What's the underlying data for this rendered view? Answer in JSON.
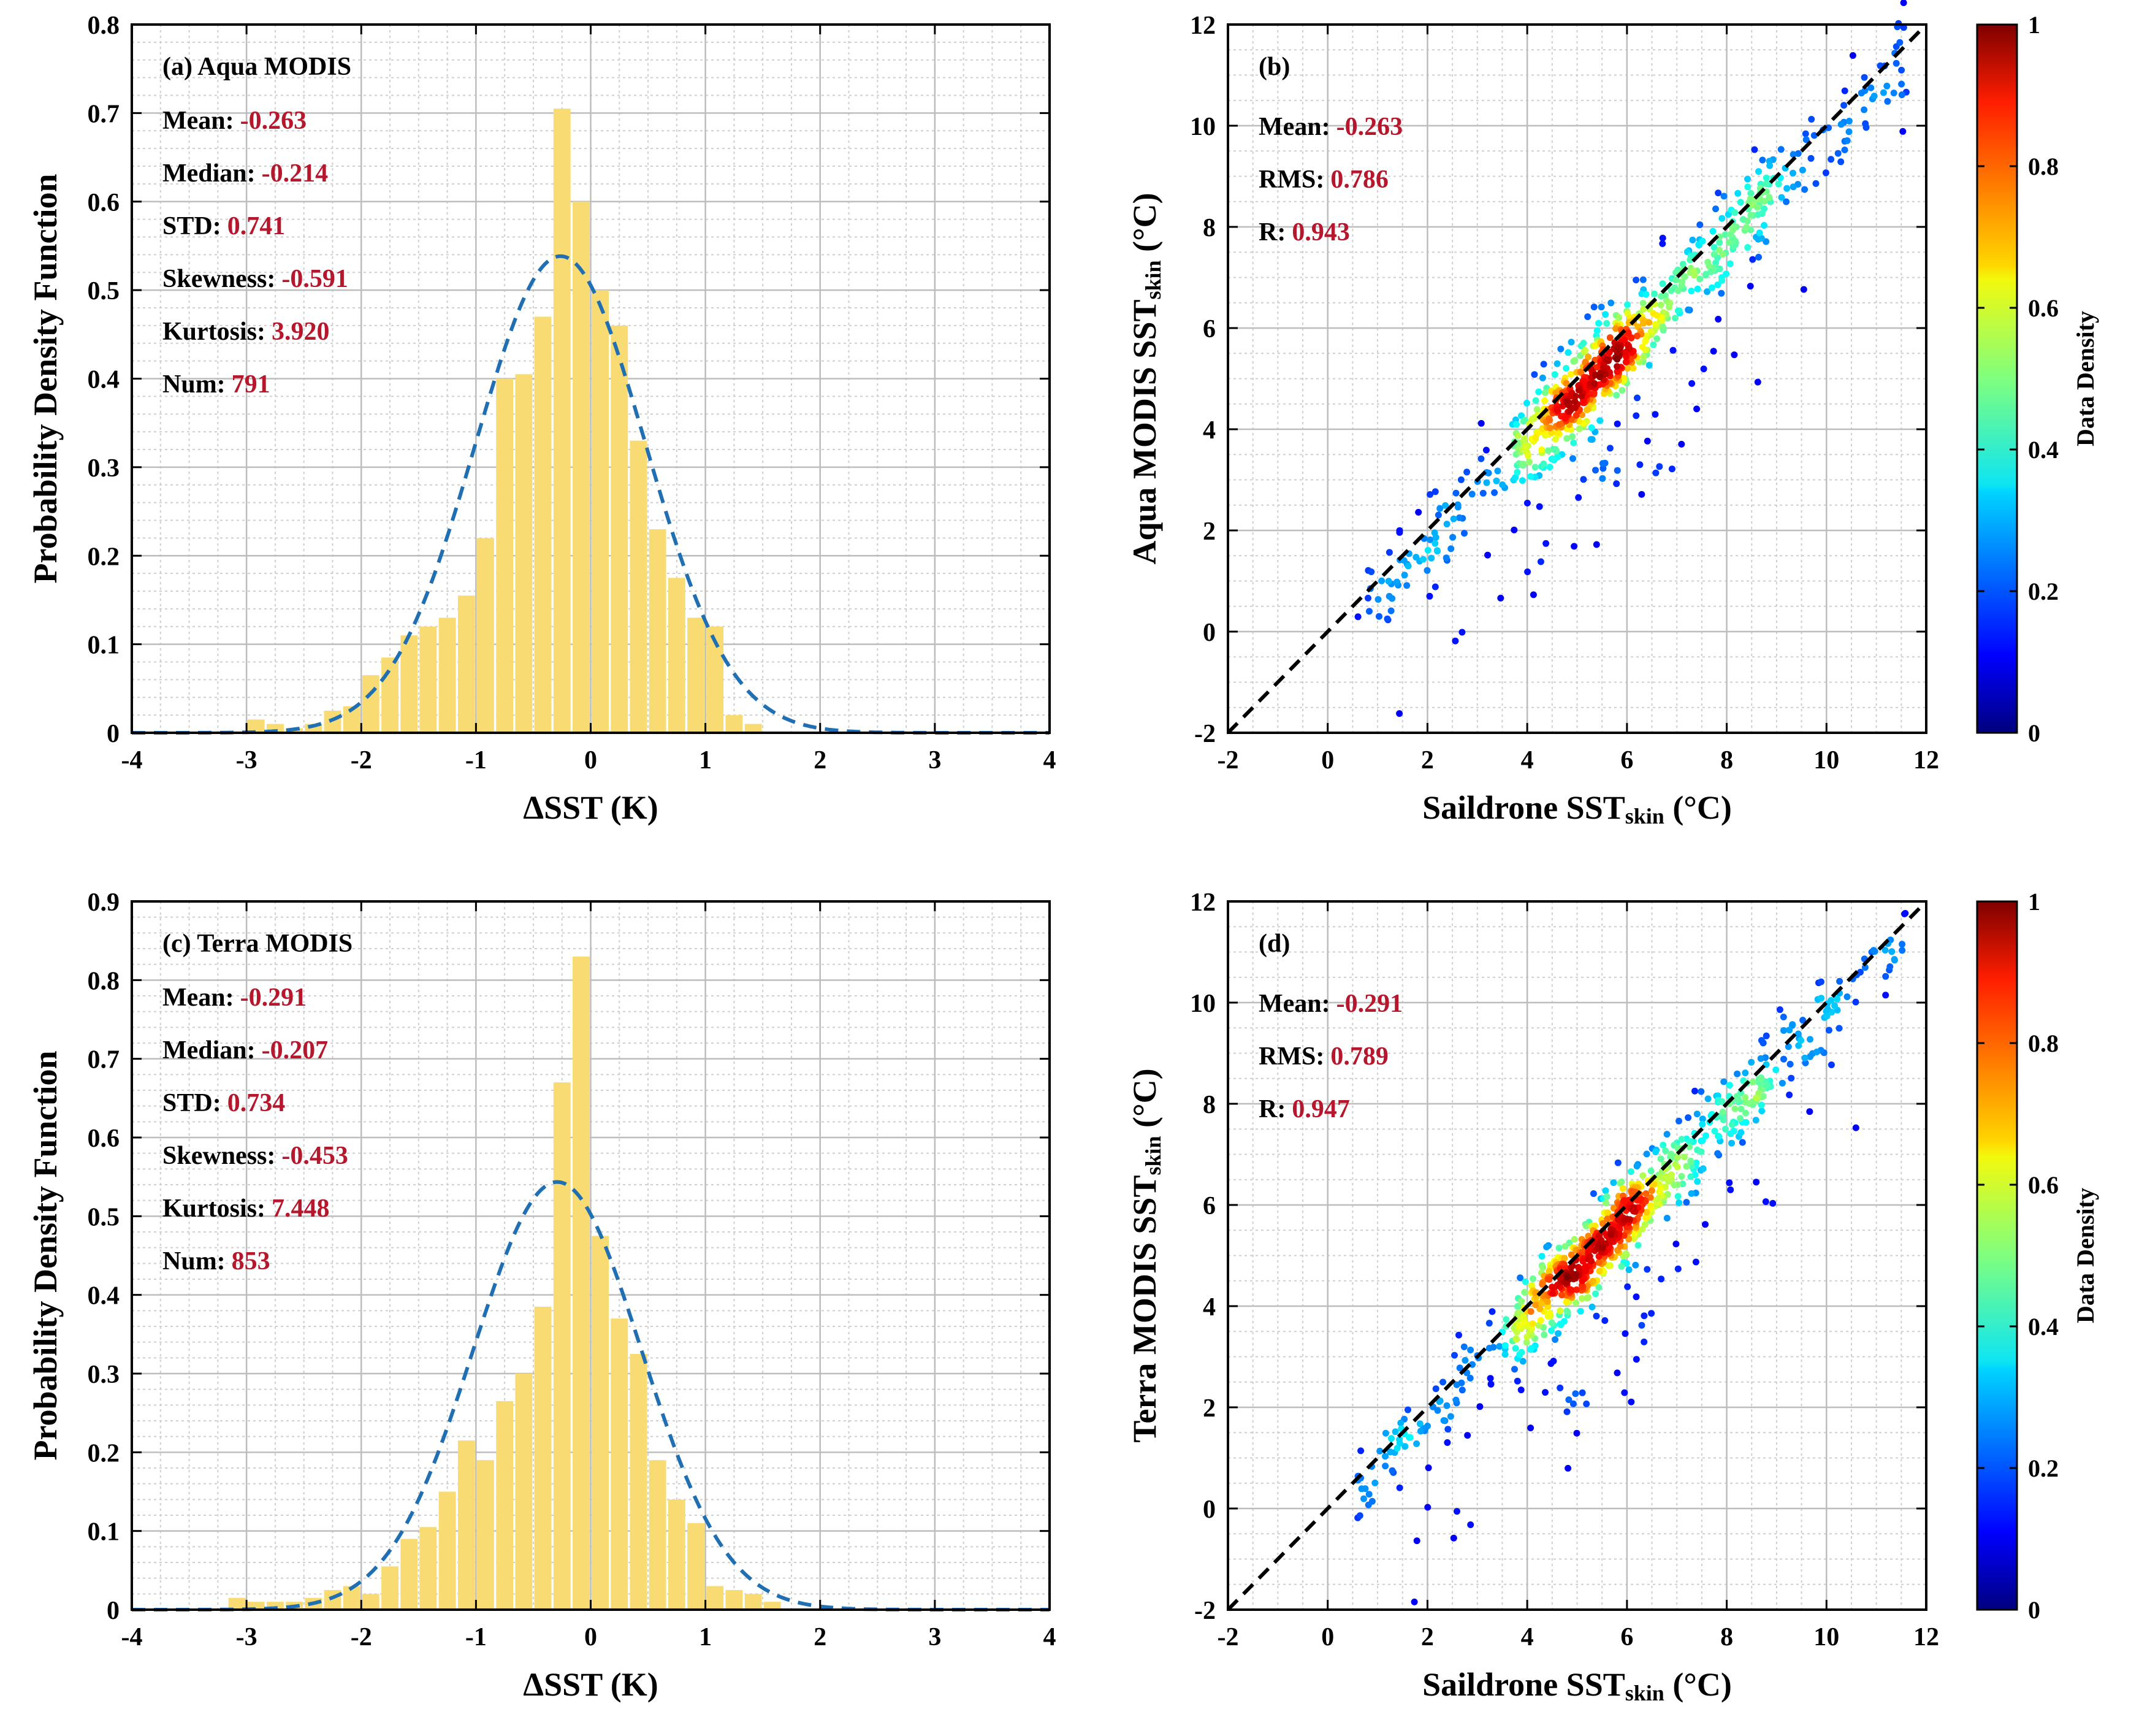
{
  "chart_data": [
    {
      "id": "a",
      "type": "bar",
      "title": "(a) Aqua MODIS",
      "xlabel": "ΔSST (K)",
      "ylabel": "Probability Density Function",
      "xlim": [
        -4,
        4
      ],
      "ylim": [
        0,
        0.8
      ],
      "xticks": [
        "-4",
        "-3",
        "-2",
        "-1",
        "0",
        "1",
        "2",
        "3",
        "4"
      ],
      "yticks": [
        "0",
        "0.1",
        "0.2",
        "0.3",
        "0.4",
        "0.5",
        "0.6",
        "0.7",
        "0.8"
      ],
      "grid": true,
      "bar_width": 0.167,
      "bar_color": "#f8dc73",
      "curve_color": "#1f6fb2",
      "bins": [
        {
          "x": -2.917,
          "y": 0.015
        },
        {
          "x": -2.75,
          "y": 0.01
        },
        {
          "x": -2.583,
          "y": 0.005
        },
        {
          "x": -2.417,
          "y": 0.01
        },
        {
          "x": -2.25,
          "y": 0.025
        },
        {
          "x": -2.083,
          "y": 0.03
        },
        {
          "x": -1.917,
          "y": 0.065
        },
        {
          "x": -1.75,
          "y": 0.085
        },
        {
          "x": -1.583,
          "y": 0.11
        },
        {
          "x": -1.417,
          "y": 0.12
        },
        {
          "x": -1.25,
          "y": 0.13
        },
        {
          "x": -1.083,
          "y": 0.155
        },
        {
          "x": -0.917,
          "y": 0.22
        },
        {
          "x": -0.75,
          "y": 0.4
        },
        {
          "x": -0.583,
          "y": 0.405
        },
        {
          "x": -0.417,
          "y": 0.47
        },
        {
          "x": -0.25,
          "y": 0.705
        },
        {
          "x": -0.083,
          "y": 0.6
        },
        {
          "x": 0.083,
          "y": 0.5
        },
        {
          "x": 0.25,
          "y": 0.46
        },
        {
          "x": 0.417,
          "y": 0.33
        },
        {
          "x": 0.583,
          "y": 0.23
        },
        {
          "x": 0.75,
          "y": 0.175
        },
        {
          "x": 0.917,
          "y": 0.13
        },
        {
          "x": 1.083,
          "y": 0.12
        },
        {
          "x": 1.25,
          "y": 0.02
        },
        {
          "x": 1.417,
          "y": 0.01
        }
      ],
      "curve": {
        "mean": -0.263,
        "std": 0.741
      },
      "stats": [
        {
          "label": "Mean:",
          "value": "-0.263"
        },
        {
          "label": "Median:",
          "value": "-0.214"
        },
        {
          "label": "STD:",
          "value": "0.741"
        },
        {
          "label": "Skewness:",
          "value": "-0.591"
        },
        {
          "label": "Kurtosis:",
          "value": "3.920"
        },
        {
          "label": "Num:",
          "value": "791"
        }
      ]
    },
    {
      "id": "b",
      "type": "scatter",
      "title": "(b)",
      "xlabel_main": "Saildrone SST",
      "xlabel_sub": "skin",
      "xlabel_unit": " (°C)",
      "ylabel_main": "Aqua MODIS SST",
      "ylabel_sub": "skin",
      "ylabel_unit": " (°C)",
      "xlim": [
        -2,
        12
      ],
      "ylim": [
        -2,
        12
      ],
      "xticks": [
        "-2",
        "0",
        "2",
        "4",
        "6",
        "8",
        "10",
        "12"
      ],
      "yticks": [
        "-2",
        "0",
        "2",
        "4",
        "6",
        "8",
        "10",
        "12"
      ],
      "grid": true,
      "one_to_one_line": true,
      "point_count": 791,
      "point_center": [
        5.4,
        5.5
      ],
      "stats": [
        {
          "label": "Mean:",
          "value": "-0.263"
        },
        {
          "label": "RMS:",
          "value": "0.786"
        },
        {
          "label": "R:",
          "value": "0.943"
        }
      ],
      "colorbar": {
        "label": "Data Density",
        "range": [
          0,
          1
        ],
        "ticks": [
          "0",
          "0.2",
          "0.4",
          "0.6",
          "0.8",
          "1"
        ],
        "colormap": "jet"
      }
    },
    {
      "id": "c",
      "type": "bar",
      "title": "(c) Terra MODIS",
      "xlabel": "ΔSST (K)",
      "ylabel": "Probability Density Function",
      "xlim": [
        -4,
        4
      ],
      "ylim": [
        0,
        0.9
      ],
      "xticks": [
        "-4",
        "-3",
        "-2",
        "-1",
        "0",
        "1",
        "2",
        "3",
        "4"
      ],
      "yticks": [
        "0",
        "0.1",
        "0.2",
        "0.3",
        "0.4",
        "0.5",
        "0.6",
        "0.7",
        "0.8",
        "0.9"
      ],
      "grid": true,
      "bar_width": 0.167,
      "bar_color": "#f8dc73",
      "curve_color": "#1f6fb2",
      "bins": [
        {
          "x": -3.083,
          "y": 0.015
        },
        {
          "x": -2.917,
          "y": 0.01
        },
        {
          "x": -2.75,
          "y": 0.01
        },
        {
          "x": -2.583,
          "y": 0.01
        },
        {
          "x": -2.417,
          "y": 0.015
        },
        {
          "x": -2.25,
          "y": 0.025
        },
        {
          "x": -2.083,
          "y": 0.03
        },
        {
          "x": -1.917,
          "y": 0.02
        },
        {
          "x": -1.75,
          "y": 0.055
        },
        {
          "x": -1.583,
          "y": 0.09
        },
        {
          "x": -1.417,
          "y": 0.105
        },
        {
          "x": -1.25,
          "y": 0.15
        },
        {
          "x": -1.083,
          "y": 0.215
        },
        {
          "x": -0.917,
          "y": 0.19
        },
        {
          "x": -0.75,
          "y": 0.265
        },
        {
          "x": -0.583,
          "y": 0.3
        },
        {
          "x": -0.417,
          "y": 0.385
        },
        {
          "x": -0.25,
          "y": 0.67
        },
        {
          "x": -0.083,
          "y": 0.83
        },
        {
          "x": 0.083,
          "y": 0.475
        },
        {
          "x": 0.25,
          "y": 0.37
        },
        {
          "x": 0.417,
          "y": 0.325
        },
        {
          "x": 0.583,
          "y": 0.19
        },
        {
          "x": 0.75,
          "y": 0.14
        },
        {
          "x": 0.917,
          "y": 0.11
        },
        {
          "x": 1.083,
          "y": 0.03
        },
        {
          "x": 1.25,
          "y": 0.025
        },
        {
          "x": 1.417,
          "y": 0.02
        },
        {
          "x": 1.583,
          "y": 0.01
        }
      ],
      "curve": {
        "mean": -0.291,
        "std": 0.734
      },
      "stats": [
        {
          "label": "Mean:",
          "value": "-0.291"
        },
        {
          "label": "Median:",
          "value": "-0.207"
        },
        {
          "label": "STD:",
          "value": "0.734"
        },
        {
          "label": "Skewness:",
          "value": "-0.453"
        },
        {
          "label": "Kurtosis:",
          "value": "7.448"
        },
        {
          "label": "Num:",
          "value": "853"
        }
      ]
    },
    {
      "id": "d",
      "type": "scatter",
      "title": "(d)",
      "xlabel_main": "Saildrone SST",
      "xlabel_sub": "skin",
      "xlabel_unit": " (°C)",
      "ylabel_main": "Terra MODIS SST",
      "ylabel_sub": "skin",
      "ylabel_unit": " (°C)",
      "xlim": [
        -2,
        12
      ],
      "ylim": [
        -2,
        12
      ],
      "xticks": [
        "-2",
        "0",
        "2",
        "4",
        "6",
        "8",
        "10",
        "12"
      ],
      "yticks": [
        "-2",
        "0",
        "2",
        "4",
        "6",
        "8",
        "10",
        "12"
      ],
      "grid": true,
      "one_to_one_line": true,
      "point_count": 853,
      "point_center": [
        5.5,
        5.5
      ],
      "stats": [
        {
          "label": "Mean:",
          "value": "-0.291"
        },
        {
          "label": "RMS:",
          "value": "0.789"
        },
        {
          "label": "R:",
          "value": "0.947"
        }
      ],
      "colorbar": {
        "label": "Data Density",
        "range": [
          0,
          1
        ],
        "ticks": [
          "0",
          "0.2",
          "0.4",
          "0.6",
          "0.8",
          "1"
        ],
        "colormap": "jet"
      }
    }
  ]
}
